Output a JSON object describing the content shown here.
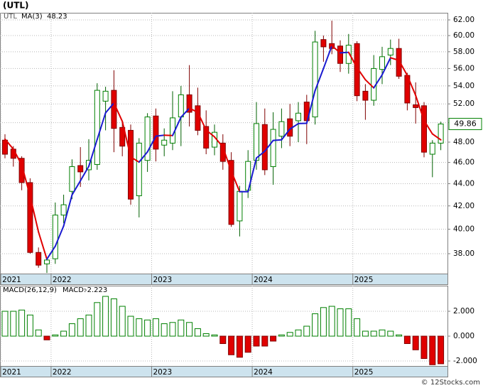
{
  "chart_data": [
    {
      "type": "candlestick",
      "title": "(UTL)",
      "ticker": "UTL",
      "open": [
        48.2,
        47.3,
        46.4,
        44.1,
        38.1,
        37.2,
        37.6,
        41.2,
        43.3,
        45.7,
        45.3,
        45.8,
        52.3,
        53.5,
        49.5,
        49.2,
        42.9,
        46.2,
        50.7,
        47.7,
        47.9,
        50.6,
        53.0,
        51.8,
        49.6,
        47.5,
        47.9,
        46.2,
        40.7,
        43.4,
        46.2,
        49.8,
        45.6,
        48.6,
        50.4,
        50.2,
        52.2,
        50.6,
        59.5,
        59.0,
        58.7,
        56.6,
        59.0,
        53.4,
        52.4,
        55.9,
        57.6,
        58.4,
        55.2,
        51.9,
        51.8,
        46.8,
        47.9
      ],
      "high": [
        48.8,
        47.6,
        46.6,
        44.5,
        38.5,
        37.7,
        42.3,
        43.0,
        46.3,
        47.5,
        48.3,
        54.3,
        53.9,
        55.8,
        50.2,
        49.8,
        48.4,
        51.0,
        51.5,
        49.4,
        53.4,
        54.0,
        56.4,
        53.8,
        51.3,
        49.8,
        48.8,
        47.0,
        43.8,
        47.2,
        52.2,
        51.5,
        51.1,
        51.5,
        52.0,
        52.2,
        53.0,
        60.6,
        60.0,
        61.9,
        59.4,
        60.2,
        59.3,
        54.2,
        57.6,
        58.6,
        59.5,
        59.6,
        55.5,
        54.4,
        52.2,
        48.2,
        50.1
      ],
      "low": [
        46.4,
        45.6,
        43.4,
        38.0,
        36.9,
        36.5,
        37.2,
        40.5,
        42.6,
        43.7,
        44.3,
        45.3,
        49.2,
        47.0,
        46.6,
        42.1,
        41.0,
        45.1,
        46.1,
        46.6,
        47.2,
        47.6,
        49.6,
        48.7,
        46.8,
        46.7,
        45.3,
        40.2,
        39.4,
        42.7,
        45.3,
        44.8,
        43.9,
        47.4,
        47.6,
        48.0,
        47.8,
        49.8,
        56.8,
        57.7,
        55.6,
        55.4,
        52.3,
        50.3,
        51.8,
        54.2,
        56.4,
        54.8,
        51.3,
        49.9,
        46.5,
        44.6,
        47.2
      ],
      "close": [
        46.8,
        46.4,
        44.1,
        38.1,
        37.1,
        37.5,
        41.2,
        42.1,
        45.6,
        45.1,
        46.2,
        53.5,
        53.4,
        49.4,
        47.6,
        42.6,
        47.9,
        50.6,
        47.3,
        48.2,
        50.5,
        53.0,
        51.1,
        49.2,
        47.4,
        49.0,
        46.1,
        40.4,
        43.3,
        46.1,
        49.9,
        45.3,
        49.3,
        50.1,
        48.6,
        51.0,
        50.2,
        59.2,
        58.6,
        58.4,
        56.6,
        58.8,
        52.9,
        52.4,
        56.0,
        57.4,
        58.4,
        55.1,
        52.1,
        51.6,
        47.0,
        47.9,
        49.86
      ],
      "up_color": "#008000",
      "down_color": "#e00000",
      "ma": {
        "name": "MA(3)",
        "up_color": "#1a1ad0",
        "down_color": "#e00000",
        "values": [
          48.3,
          47.3,
          45.77,
          42.87,
          39.77,
          37.57,
          38.6,
          40.27,
          42.97,
          44.27,
          45.63,
          48.27,
          51.03,
          52.1,
          50.13,
          46.53,
          46.03,
          47.03,
          48.6,
          48.7,
          48.67,
          50.57,
          51.53,
          51.1,
          49.23,
          48.53,
          47.5,
          45.17,
          43.27,
          43.27,
          46.43,
          47.1,
          48.17,
          48.23,
          49.33,
          49.9,
          49.93,
          53.47,
          56.0,
          58.73,
          57.87,
          57.93,
          56.1,
          54.7,
          53.77,
          55.27,
          57.27,
          56.97,
          55.2,
          52.93,
          50.23,
          48.83,
          48.23
        ]
      },
      "log_scale": true,
      "grid": true,
      "ylim": [
        36.45,
        62.93
      ],
      "yticks": [
        {
          "value": 38,
          "label": "38.00"
        },
        {
          "value": 40,
          "label": "40.00"
        },
        {
          "value": 42,
          "label": "42.00"
        },
        {
          "value": 44,
          "label": "44.00"
        },
        {
          "value": 46,
          "label": "46.00"
        },
        {
          "value": 48,
          "label": "48.00"
        },
        {
          "value": 50,
          "label": "50.00"
        },
        {
          "value": 52,
          "label": "52.00"
        },
        {
          "value": 54,
          "label": "54.00"
        },
        {
          "value": 56,
          "label": "56.00"
        },
        {
          "value": 58,
          "label": "58.00"
        },
        {
          "value": 60,
          "label": "60.00"
        },
        {
          "value": 62,
          "label": "62.00"
        }
      ],
      "xticks": [
        {
          "value": -0.5,
          "label": "2021"
        },
        {
          "value": 5.5,
          "label": "2022"
        },
        {
          "value": 17.5,
          "label": "2023"
        },
        {
          "value": 29.5,
          "label": "2024"
        },
        {
          "value": 41.5,
          "label": "2025"
        }
      ]
    },
    {
      "type": "bar",
      "title": "MACD(26,12,9)",
      "value_name": "MACD:",
      "color": "#0000cc",
      "up_color": "#008000",
      "down_color": "#e00000",
      "values": [
        2.0,
        2.0,
        2.1,
        1.7,
        0.5,
        -0.3,
        0.1,
        0.4,
        1.0,
        1.4,
        1.7,
        2.7,
        3.2,
        3.0,
        2.4,
        1.6,
        1.4,
        1.3,
        1.4,
        1.0,
        1.1,
        1.3,
        1.1,
        0.6,
        0.2,
        0.1,
        -0.6,
        -1.5,
        -1.7,
        -1.3,
        -0.8,
        -0.8,
        -0.4,
        0.1,
        0.3,
        0.5,
        0.8,
        1.8,
        2.3,
        2.4,
        2.2,
        2.2,
        1.4,
        0.4,
        0.4,
        0.5,
        0.4,
        0.1,
        -0.6,
        -1.1,
        -1.8,
        -2.3,
        -2.223
      ],
      "grid": true,
      "ylim": [
        -2.4,
        4.06
      ],
      "yticks": [
        {
          "value": -2,
          "label": "-2.000"
        },
        {
          "value": 0,
          "label": "0.000"
        },
        {
          "value": 2,
          "label": "2.000"
        }
      ],
      "xticks": [
        {
          "value": -0.5,
          "label": "2021"
        },
        {
          "value": 5.5,
          "label": "2022"
        },
        {
          "value": 17.5,
          "label": "2023"
        },
        {
          "value": 29.5,
          "label": "2024"
        },
        {
          "value": 41.5,
          "label": "2025"
        }
      ]
    }
  ],
  "footer": "© 12Stocks.com"
}
